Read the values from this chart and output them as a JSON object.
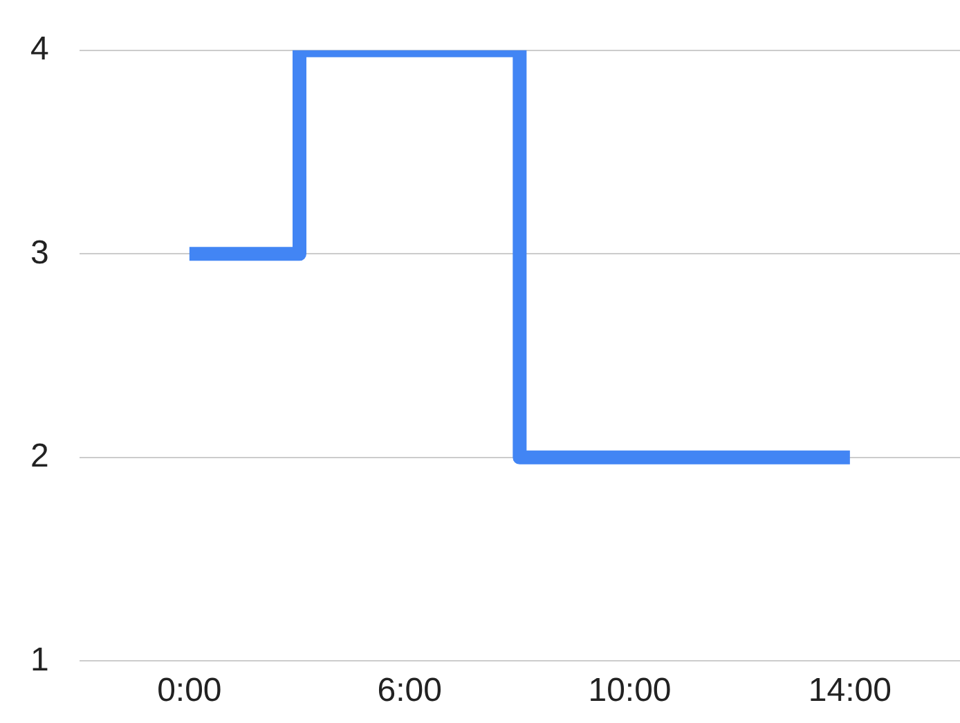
{
  "chart_data": {
    "type": "step",
    "categories": [
      "0:00",
      "6:00",
      "10:00",
      "14:00"
    ],
    "series": [
      {
        "color": "#4285f4",
        "values": [
          3,
          4,
          2,
          2
        ]
      }
    ],
    "ylim": [
      1,
      4
    ],
    "yticks": [
      1,
      2,
      3,
      4
    ],
    "grid": "y",
    "legend": false
  }
}
